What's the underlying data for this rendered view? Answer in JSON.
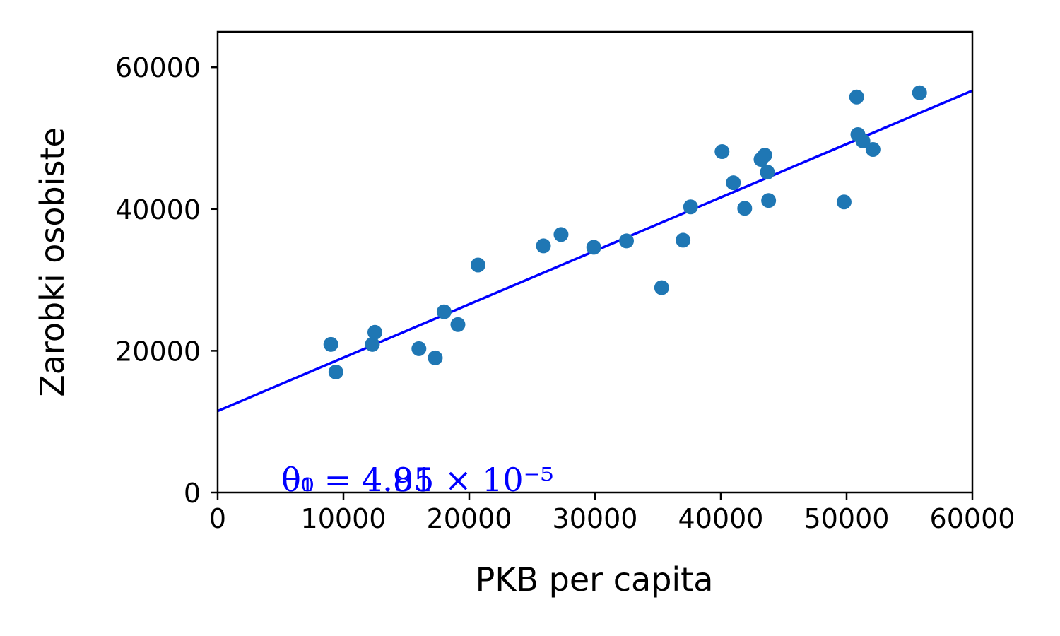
{
  "chart_data": {
    "type": "scatter",
    "xlabel": "PKB per capita",
    "ylabel": "Zarobki osobiste",
    "xlim": [
      0,
      60000
    ],
    "ylim": [
      0,
      65000
    ],
    "x_ticks": [
      "0",
      "10000",
      "20000",
      "30000",
      "40000",
      "50000",
      "60000"
    ],
    "y_ticks": [
      "0",
      "20000",
      "40000",
      "60000"
    ],
    "grid": false,
    "legend": "none",
    "marker_color": "#1f77b4",
    "line_color": "#0000ff",
    "points": [
      {
        "x": 9000,
        "y": 20900
      },
      {
        "x": 9400,
        "y": 17000
      },
      {
        "x": 12300,
        "y": 20900
      },
      {
        "x": 12500,
        "y": 22600
      },
      {
        "x": 16000,
        "y": 20300
      },
      {
        "x": 17300,
        "y": 19000
      },
      {
        "x": 18000,
        "y": 25500
      },
      {
        "x": 19100,
        "y": 23700
      },
      {
        "x": 20700,
        "y": 32100
      },
      {
        "x": 25900,
        "y": 34800
      },
      {
        "x": 27300,
        "y": 36400
      },
      {
        "x": 29900,
        "y": 34600
      },
      {
        "x": 32500,
        "y": 35500
      },
      {
        "x": 35300,
        "y": 28900
      },
      {
        "x": 37000,
        "y": 35600
      },
      {
        "x": 37600,
        "y": 40300
      },
      {
        "x": 40100,
        "y": 48100
      },
      {
        "x": 41000,
        "y": 43700
      },
      {
        "x": 41900,
        "y": 40100
      },
      {
        "x": 43200,
        "y": 47000
      },
      {
        "x": 43500,
        "y": 47600
      },
      {
        "x": 43700,
        "y": 45200
      },
      {
        "x": 43800,
        "y": 41200
      },
      {
        "x": 49800,
        "y": 41000
      },
      {
        "x": 50800,
        "y": 55800
      },
      {
        "x": 50900,
        "y": 50500
      },
      {
        "x": 51300,
        "y": 49600
      },
      {
        "x": 52100,
        "y": 48400
      },
      {
        "x": 55800,
        "y": 56400
      }
    ],
    "fit_line": {
      "x": [
        0,
        60000
      ],
      "y": [
        11500,
        56700
      ]
    },
    "annotations": [
      {
        "x": 5000,
        "y": 0,
        "text": "θ₁ = 4.91 × 10⁻⁵"
      },
      {
        "x": 5000,
        "y": 0,
        "text": "θ₀ = 4.85"
      }
    ]
  }
}
